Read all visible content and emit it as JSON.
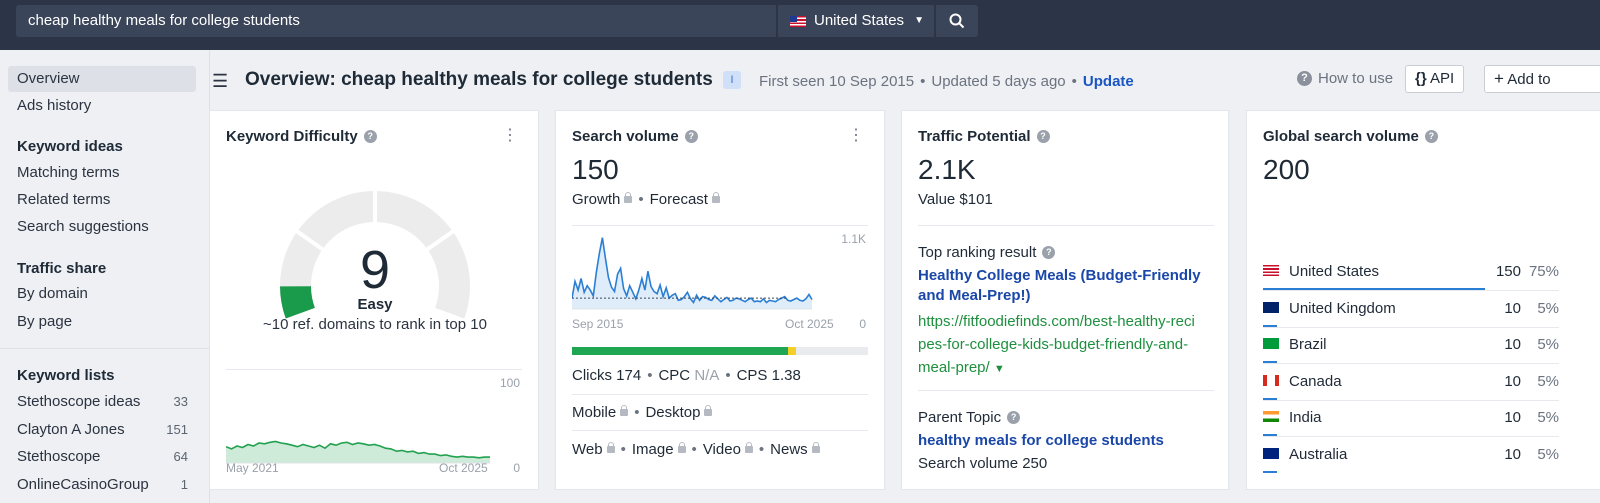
{
  "search": {
    "query": "cheap healthy meals for college students",
    "country": "United States"
  },
  "sidebar": {
    "items": [
      {
        "label": "Overview"
      },
      {
        "label": "Ads history"
      }
    ],
    "sections": [
      {
        "heading": "Keyword ideas",
        "items": [
          "Matching terms",
          "Related terms",
          "Search suggestions"
        ]
      },
      {
        "heading": "Traffic share",
        "items": [
          "By domain",
          "By page"
        ]
      }
    ],
    "lists": {
      "heading": "Keyword lists",
      "items": [
        {
          "label": "Stethoscope ideas",
          "count": "33"
        },
        {
          "label": "Clayton A Jones",
          "count": "151"
        },
        {
          "label": "Stethoscope",
          "count": "64"
        },
        {
          "label": "OnlineCasinoGroup",
          "count": "1"
        }
      ]
    }
  },
  "header": {
    "title": "Overview: cheap healthy meals for college students",
    "badge": "I",
    "first_seen": "First seen 10 Sep 2015",
    "updated": "Updated 5 days ago",
    "update_link": "Update",
    "how_to_use": "How to use",
    "api": "API",
    "add_to": "Add to"
  },
  "kd_card": {
    "title": "Keyword Difficulty",
    "value": "9",
    "label": "Easy",
    "subtext": "~10 ref. domains to rank in top 10",
    "chart_ymax": "100",
    "chart_ymin": "0",
    "chart_start": "May 2021",
    "chart_end": "Oct 2025",
    "accent": "#1a9b4b"
  },
  "sv_card": {
    "title": "Search volume",
    "value": "150",
    "growth": "Growth",
    "forecast": "Forecast",
    "chart_ymax": "1.1K",
    "chart_ymin": "0",
    "chart_start": "Sep 2015",
    "chart_end": "Oct 2025",
    "clicks": "Clicks 174",
    "cpc_label": "CPC",
    "cpc_value": "N/A",
    "cps": "CPS 1.38",
    "mobile": "Mobile",
    "desktop": "Desktop",
    "web": "Web",
    "image": "Image",
    "video": "Video",
    "news": "News",
    "line_color": "#2a7fd4"
  },
  "tp_card": {
    "title": "Traffic Potential",
    "value": "2.1K",
    "value_text": "Value $101",
    "top_result_label": "Top ranking result",
    "top_result_title": "Healthy College Meals (Budget-Friendly and Meal-Prep!)",
    "top_result_url_1": "https://fitfoodiefinds.com/best-healthy-reci",
    "top_result_url_2": "pes-for-college-kids-budget-friendly-and-",
    "top_result_url_3": "meal-prep/",
    "parent_topic_label": "Parent Topic",
    "parent_topic": "healthy meals for college students",
    "parent_volume": "Search volume 250"
  },
  "gsv_card": {
    "title": "Global search volume",
    "value": "200",
    "countries": [
      {
        "name": "United States",
        "volume": "150",
        "pct": "75%",
        "flag": "us"
      },
      {
        "name": "United Kingdom",
        "volume": "10",
        "pct": "5%",
        "flag": "uk"
      },
      {
        "name": "Brazil",
        "volume": "10",
        "pct": "5%",
        "flag": "br"
      },
      {
        "name": "Canada",
        "volume": "10",
        "pct": "5%",
        "flag": "ca"
      },
      {
        "name": "India",
        "volume": "10",
        "pct": "5%",
        "flag": "in"
      },
      {
        "name": "Australia",
        "volume": "10",
        "pct": "5%",
        "flag": "au"
      }
    ]
  }
}
